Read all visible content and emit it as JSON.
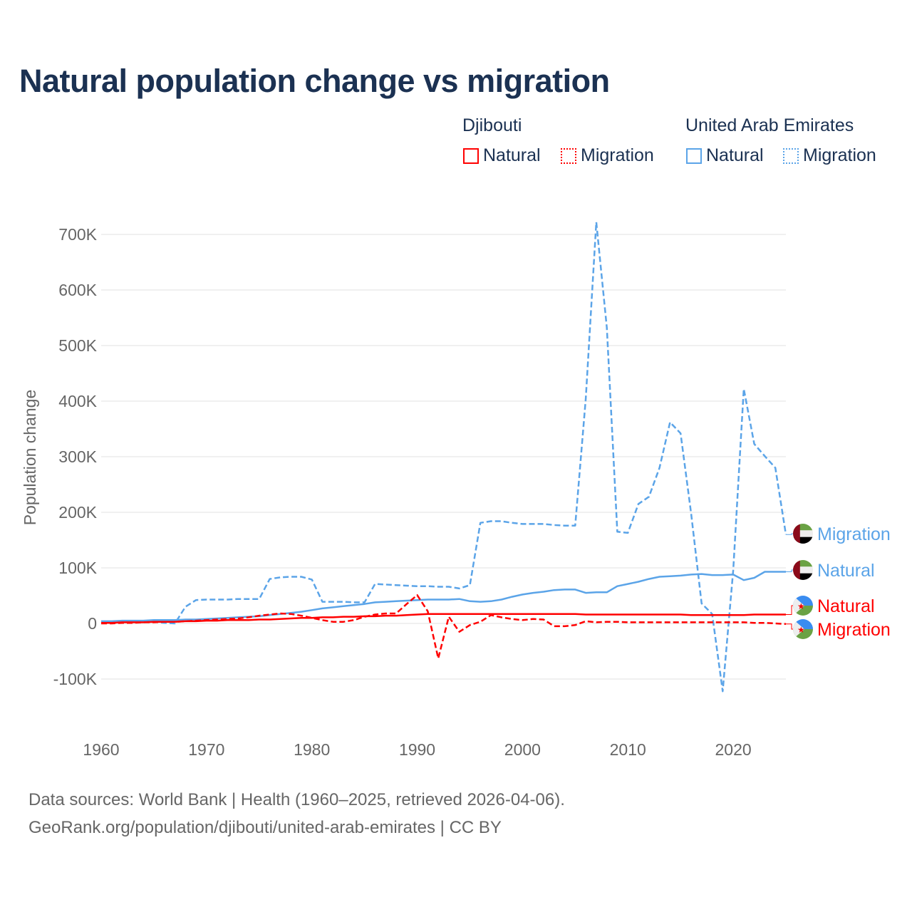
{
  "title": "Natural population change vs migration",
  "legend": {
    "groups": [
      {
        "name": "Djibouti",
        "color": "#ff0000",
        "items": [
          "Natural",
          "Migration"
        ]
      },
      {
        "name": "United Arab Emirates",
        "color": "#5ba4e8",
        "items": [
          "Natural",
          "Migration"
        ]
      }
    ]
  },
  "footer": {
    "line1": "Data sources: World Bank | Health (1960–2025, retrieved 2026-04-06).",
    "line2": "GeoRank.org/population/djibouti/united-arab-emirates | CC BY"
  },
  "chart_data": {
    "type": "line",
    "title": "Natural population change vs migration",
    "xlabel": "",
    "ylabel": "Population change",
    "xlim": [
      1960,
      2025
    ],
    "ylim": [
      -150000,
      730000
    ],
    "x_ticks": [
      1960,
      1970,
      1980,
      1990,
      2000,
      2010,
      2020
    ],
    "x_tick_labels": [
      "1960",
      "1970",
      "1980",
      "1990",
      "2000",
      "2010",
      "2020"
    ],
    "y_ticks": [
      -100000,
      0,
      100000,
      200000,
      300000,
      400000,
      500000,
      600000,
      700000
    ],
    "y_tick_labels": [
      "-100K",
      "0",
      "100K",
      "200K",
      "300K",
      "400K",
      "500K",
      "600K",
      "700K"
    ],
    "grid": true,
    "legend_position": "top-right",
    "start_year": 1960,
    "series": [
      {
        "name": "United Arab Emirates Migration",
        "label": "Migration",
        "color": "#5ba4e8",
        "dash": true,
        "values_k": [
          3,
          3,
          3,
          3,
          3,
          3,
          1,
          0,
          30,
          42,
          43,
          43,
          43,
          44,
          44,
          44,
          80,
          83,
          84,
          84,
          79,
          39,
          39,
          39,
          38,
          38,
          71,
          70,
          69,
          68,
          67,
          67,
          66,
          66,
          63,
          69,
          181,
          184,
          184,
          181,
          179,
          179,
          179,
          177,
          176,
          176,
          404,
          722,
          532,
          165,
          163,
          215,
          228,
          280,
          362,
          342,
          199,
          36,
          17,
          -122,
          96,
          422,
          323,
          301,
          280,
          160
        ]
      },
      {
        "name": "United Arab Emirates Natural",
        "label": "Natural",
        "color": "#5ba4e8",
        "dash": false,
        "values_k": [
          4,
          4,
          5,
          5,
          5,
          6,
          6,
          6,
          7,
          7,
          8,
          9,
          10,
          11,
          12,
          13,
          15,
          17,
          19,
          21,
          24,
          27,
          29,
          31,
          33,
          35,
          38,
          39,
          40,
          41,
          42,
          43,
          43,
          43,
          44,
          40,
          39,
          40,
          43,
          48,
          52,
          55,
          57,
          60,
          61,
          61,
          55,
          56,
          56,
          67,
          71,
          75,
          80,
          84,
          85,
          86,
          88,
          89,
          87,
          87,
          88,
          78,
          82,
          93,
          93,
          93
        ]
      },
      {
        "name": "Djibouti Natural",
        "label": "Natural",
        "color": "#ff0000",
        "dash": false,
        "values_k": [
          1,
          1,
          2,
          2,
          2,
          3,
          3,
          3,
          4,
          4,
          5,
          5,
          6,
          6,
          6,
          7,
          7,
          8,
          9,
          10,
          10,
          11,
          11,
          12,
          12,
          13,
          13,
          14,
          14,
          15,
          16,
          17,
          17,
          17,
          17,
          17,
          17,
          17,
          17,
          17,
          17,
          17,
          17,
          17,
          17,
          17,
          16,
          16,
          16,
          16,
          16,
          16,
          16,
          16,
          16,
          16,
          15,
          15,
          15,
          15,
          15,
          15,
          16,
          16,
          16,
          16
        ]
      },
      {
        "name": "Djibouti Migration",
        "label": "Migration",
        "color": "#ff0000",
        "dash": true,
        "values_k": [
          0,
          0,
          1,
          1,
          2,
          2,
          3,
          3,
          4,
          5,
          6,
          7,
          8,
          9,
          11,
          14,
          16,
          18,
          17,
          14,
          10,
          6,
          3,
          3,
          6,
          12,
          16,
          18,
          18,
          35,
          51,
          22,
          -63,
          12,
          -15,
          -3,
          3,
          15,
          11,
          8,
          6,
          8,
          7,
          -5,
          -5,
          -3,
          4,
          2,
          3,
          3,
          2,
          2,
          2,
          2,
          2,
          2,
          2,
          2,
          2,
          2,
          2,
          2,
          1,
          1,
          0,
          -1
        ]
      }
    ]
  }
}
